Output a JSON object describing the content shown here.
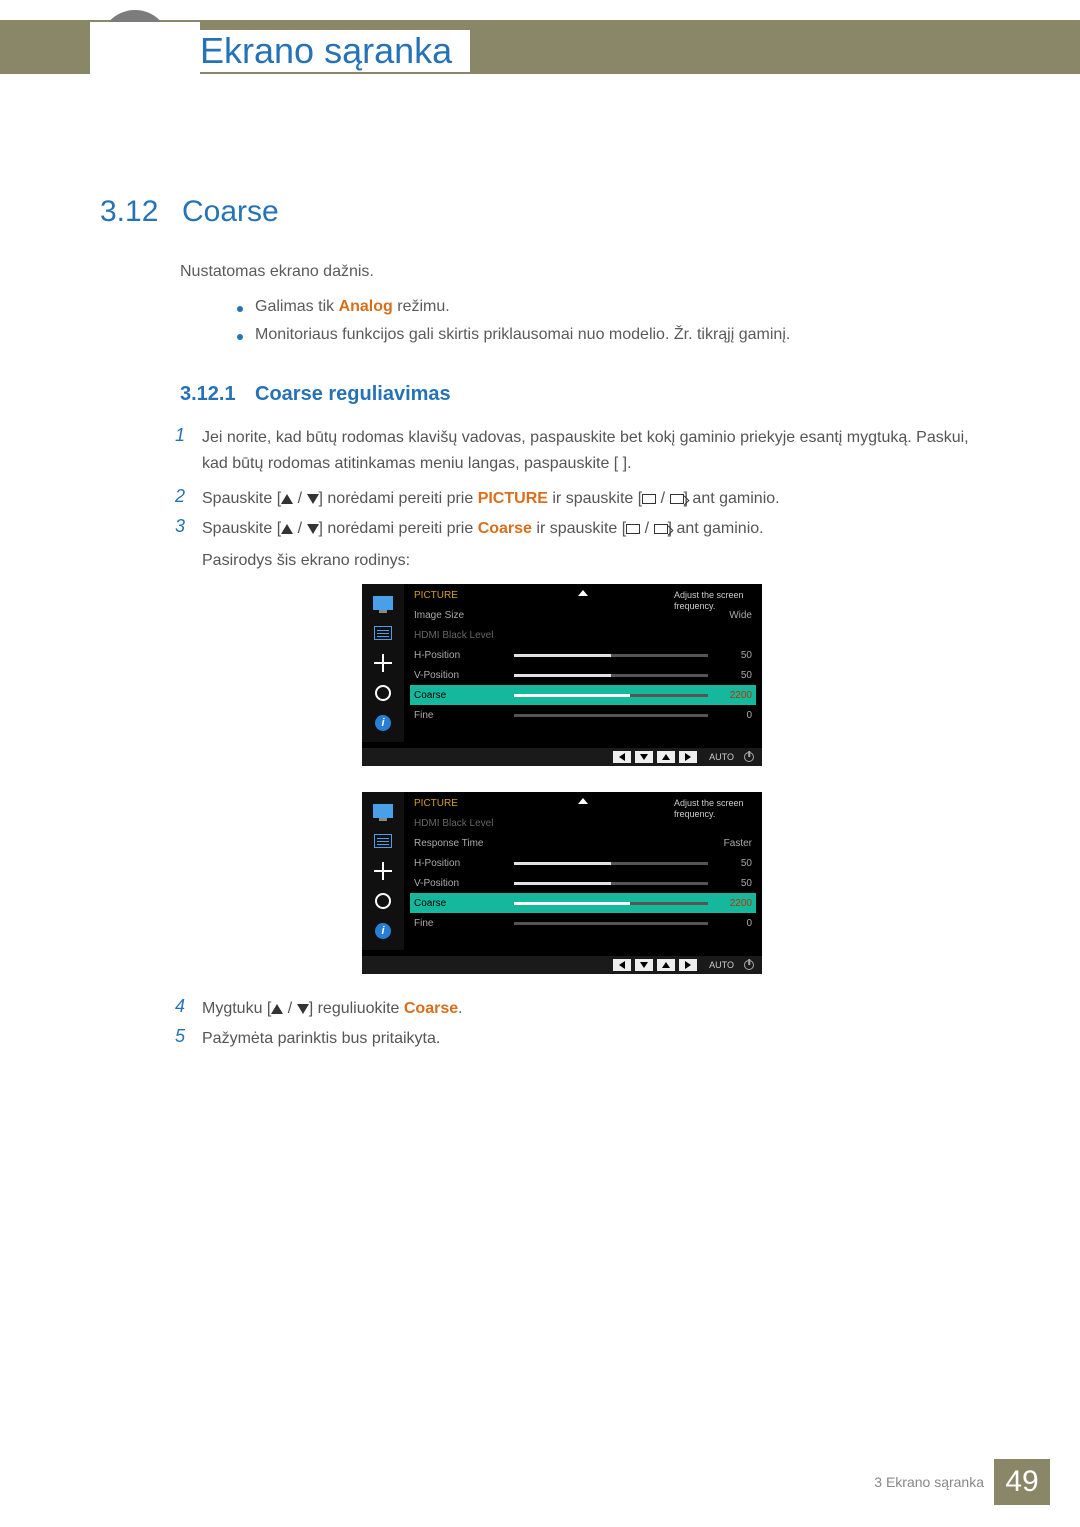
{
  "header": {
    "chapter_title": "Ekrano sąranka"
  },
  "section": {
    "num": "3.12",
    "title": "Coarse"
  },
  "intro": "Nustatomas ekrano dažnis.",
  "bullets": {
    "b1_pre": "Galimas tik ",
    "b1_hl": "Analog",
    "b1_post": " režimu.",
    "b2": "Monitoriaus funkcijos gali skirtis priklausomai nuo modelio. Žr. tikrąjį gaminį."
  },
  "subsection": {
    "num": "3.12.1",
    "title": "Coarse reguliavimas"
  },
  "steps": {
    "s1": "Jei norite, kad būtų rodomas klavišų vadovas, paspauskite bet kokį gaminio priekyje esantį mygtuką. Paskui, kad būtų rodomas atitinkamas meniu langas, paspauskite [        ].",
    "s2_pre": "Spauskite [",
    "s2_mid": "] norėdami pereiti prie ",
    "s2_hl": "PICTURE",
    "s2_post": " ir spauskite [",
    "s2_end": "] ant gaminio.",
    "s3_pre": "Spauskite [",
    "s3_mid": "] norėdami pereiti prie ",
    "s3_hl": "Coarse",
    "s3_post": " ir spauskite [",
    "s3_end": "] ant gaminio.",
    "s3_line2": "Pasirodys šis ekrano rodinys:",
    "s4_pre": "Mygtuku [",
    "s4_mid": "] reguliuokite ",
    "s4_hl": "Coarse",
    "s4_post": ".",
    "s5": "Pažymėta parinktis bus pritaikyta."
  },
  "osd": {
    "menu_title": "PICTURE",
    "tooltip": "Adjust the screen frequency.",
    "auto": "AUTO",
    "panel1": {
      "rows": [
        {
          "label": "Image Size",
          "val": "Wide",
          "bar": null
        },
        {
          "label": "HDMI Black Level",
          "val": "",
          "bar": null,
          "dim": true
        },
        {
          "label": "H-Position",
          "val": "50",
          "bar": 50
        },
        {
          "label": "V-Position",
          "val": "50",
          "bar": 50
        },
        {
          "label": "Coarse",
          "val": "2200",
          "bar": 60,
          "sel": true
        },
        {
          "label": "Fine",
          "val": "0",
          "bar": 0
        }
      ]
    },
    "panel2": {
      "rows": [
        {
          "label": "HDMI Black Level",
          "val": "",
          "bar": null,
          "dim": true
        },
        {
          "label": "Response Time",
          "val": "Faster",
          "bar": null
        },
        {
          "label": "H-Position",
          "val": "50",
          "bar": 50
        },
        {
          "label": "V-Position",
          "val": "50",
          "bar": 50
        },
        {
          "label": "Coarse",
          "val": "2200",
          "bar": 60,
          "sel": true
        },
        {
          "label": "Fine",
          "val": "0",
          "bar": 0
        }
      ]
    }
  },
  "footer": {
    "text": "3 Ekrano sąranka",
    "page": "49"
  },
  "colors": {
    "accent_blue": "#2573b6",
    "accent_orange": "#d96f1c",
    "banner": "#8a8668",
    "osd_sel": "#15b89c",
    "osd_title": "#d4a017"
  }
}
